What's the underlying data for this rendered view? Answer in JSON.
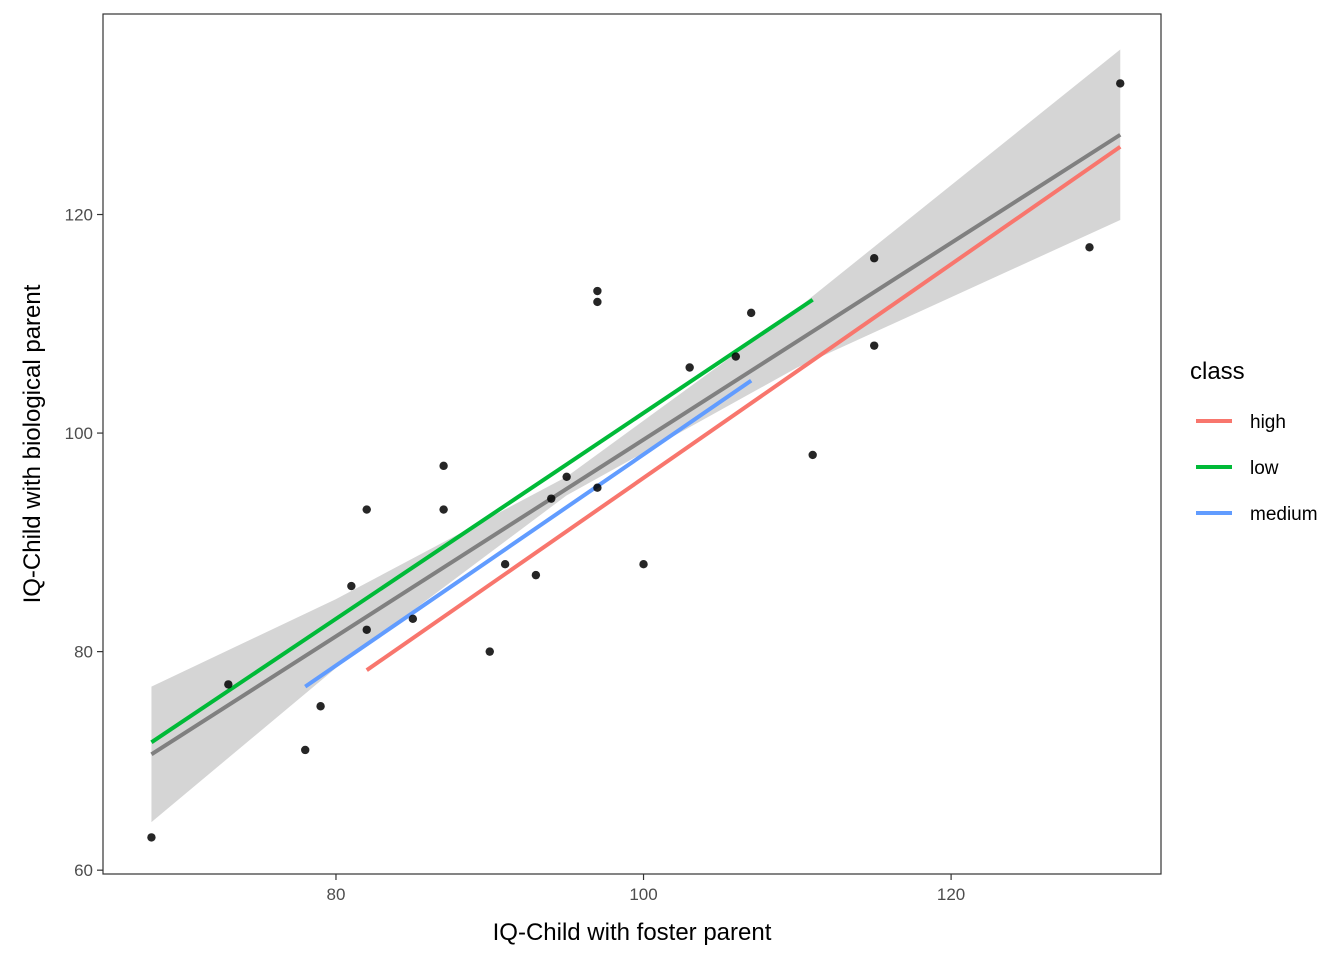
{
  "chart_data": {
    "type": "scatter",
    "title": "",
    "xlabel": "IQ-Child with foster parent",
    "ylabel": "IQ-Child with biological parent",
    "xlim": [
      64.85,
      133.65
    ],
    "ylim": [
      59.65,
      138.35
    ],
    "x_ticks": [
      80,
      100,
      120
    ],
    "y_ticks": [
      60,
      80,
      100,
      120
    ],
    "grid": false,
    "legend": {
      "title": "class",
      "placement": "right"
    },
    "points": [
      {
        "x": 68,
        "y": 63
      },
      {
        "x": 73,
        "y": 77
      },
      {
        "x": 78,
        "y": 71
      },
      {
        "x": 79,
        "y": 75
      },
      {
        "x": 81,
        "y": 86
      },
      {
        "x": 82,
        "y": 82
      },
      {
        "x": 82,
        "y": 93
      },
      {
        "x": 85,
        "y": 83
      },
      {
        "x": 87,
        "y": 97
      },
      {
        "x": 87,
        "y": 93
      },
      {
        "x": 90,
        "y": 80
      },
      {
        "x": 91,
        "y": 88
      },
      {
        "x": 93,
        "y": 87
      },
      {
        "x": 94,
        "y": 94
      },
      {
        "x": 95,
        "y": 96
      },
      {
        "x": 97,
        "y": 95
      },
      {
        "x": 97,
        "y": 112
      },
      {
        "x": 97,
        "y": 113
      },
      {
        "x": 100,
        "y": 88
      },
      {
        "x": 103,
        "y": 106
      },
      {
        "x": 106,
        "y": 107
      },
      {
        "x": 107,
        "y": 111
      },
      {
        "x": 111,
        "y": 98
      },
      {
        "x": 115,
        "y": 116
      },
      {
        "x": 115,
        "y": 108
      },
      {
        "x": 129,
        "y": 117
      },
      {
        "x": 131,
        "y": 132
      }
    ],
    "overall_fit": {
      "line": [
        [
          68,
          70.6
        ],
        [
          131,
          127.3
        ]
      ],
      "band": [
        {
          "x": 68,
          "lo": 64.4,
          "hi": 76.8
        },
        {
          "x": 80,
          "lo": 78.5,
          "hi": 84.8
        },
        {
          "x": 95,
          "lo": 94.3,
          "hi": 96.0
        },
        {
          "x": 110,
          "lo": 106.0,
          "hi": 111.4
        },
        {
          "x": 131,
          "lo": 119.5,
          "hi": 135.1
        }
      ],
      "color": "#808080",
      "band_color": "#d3d3d3"
    },
    "series": [
      {
        "name": "high",
        "color": "#f8766d",
        "line": [
          [
            82,
            78.3
          ],
          [
            131,
            126.2
          ]
        ]
      },
      {
        "name": "low",
        "color": "#00ba38",
        "line": [
          [
            68,
            71.7
          ],
          [
            111,
            112.2
          ]
        ]
      },
      {
        "name": "medium",
        "color": "#619cff",
        "line": [
          [
            78,
            76.8
          ],
          [
            107,
            104.8
          ]
        ]
      }
    ]
  }
}
